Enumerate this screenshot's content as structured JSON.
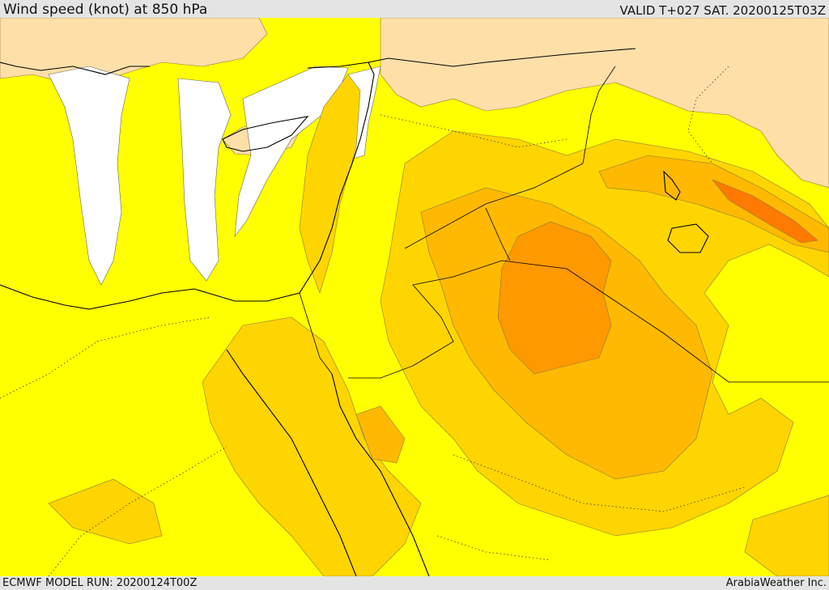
{
  "header": {
    "title": "Wind speed (knot) at 850 hPa",
    "valid": "VALID T+027 SAT. 20200125T03Z"
  },
  "footer": {
    "model_run": "ECMWF MODEL RUN: 20200124T00Z",
    "credit": "ArabiaWeather Inc."
  },
  "colors": {
    "calm_white": "#ffffff",
    "level_1": "#fedfa8",
    "level_2": "#ffff00",
    "level_3": "#ffd500",
    "level_4": "#ffb900",
    "level_5": "#ff9900",
    "level_6": "#ff7a00",
    "coast": "#000000"
  }
}
